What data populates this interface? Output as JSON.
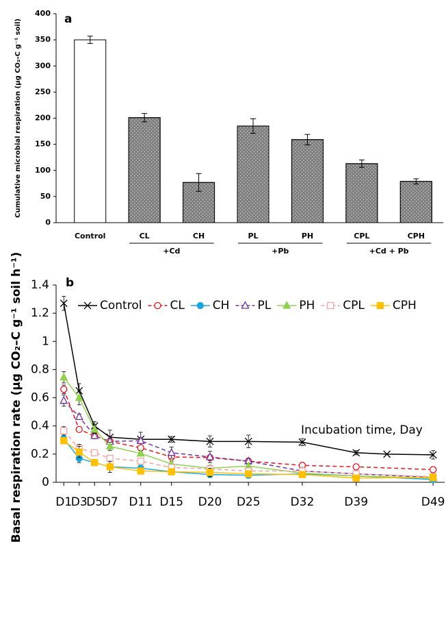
{
  "chart_data": [
    {
      "type": "bar",
      "title": "a",
      "y_label": "Cumulative microbial respiration (μg CO₂-C g⁻¹ soil)",
      "categories": [
        "Control",
        "CL",
        "CH",
        "PL",
        "PH",
        "CPL",
        "CPH"
      ],
      "values": [
        350,
        201,
        77,
        185,
        159,
        113,
        79
      ],
      "errors": [
        7,
        8,
        17,
        14,
        10,
        7,
        5
      ],
      "colors": [
        "#ffffff",
        "#7f7f7f",
        "#7f7f7f",
        "#7f7f7f",
        "#7f7f7f",
        "#7f7f7f",
        "#7f7f7f"
      ],
      "patterns": [
        "none",
        "dots",
        "dots",
        "dots",
        "dots",
        "dots",
        "dots"
      ],
      "groups": [
        "+Cd",
        "+Pb",
        "+Cd + Pb"
      ],
      "ylim": [
        0,
        400
      ],
      "yticks": [
        0,
        50,
        100,
        150,
        200,
        250,
        300,
        350,
        400
      ]
    },
    {
      "type": "line",
      "title": "b",
      "y_label": "Basal respiration rate (μg CO₂–C g⁻¹ soil h⁻¹)",
      "annotation": "Incubation time, Day",
      "xlim": [
        0,
        50.5
      ],
      "xticks": [
        {
          "value": 1,
          "label": "D1"
        },
        {
          "value": 3,
          "label": "D3"
        },
        {
          "value": 5,
          "label": "D5"
        },
        {
          "value": 7,
          "label": "D7"
        },
        {
          "value": 11,
          "label": "D11"
        },
        {
          "value": 15,
          "label": "D15"
        },
        {
          "value": 20,
          "label": "D20"
        },
        {
          "value": 25,
          "label": "D25"
        },
        {
          "value": 32,
          "label": "D32"
        },
        {
          "value": 39,
          "label": "D39"
        },
        {
          "value": 49,
          "label": "D49"
        }
      ],
      "ylim": [
        0,
        1.4
      ],
      "yticks": [
        0,
        0.2,
        0.4,
        0.6,
        0.8,
        1,
        1.2,
        1.4
      ],
      "legend": "top",
      "series": [
        {
          "name": "Control",
          "color": "#000000",
          "marker": "x",
          "dashed": false,
          "x": [
            1,
            3,
            5,
            7,
            11,
            15,
            20,
            25,
            32,
            39,
            43,
            49
          ],
          "values": [
            1.27,
            0.65,
            0.4,
            0.32,
            0.305,
            0.305,
            0.29,
            0.29,
            0.285,
            0.21,
            0.2,
            0.195
          ],
          "errors": [
            0.05,
            0.05,
            0.03,
            0.05,
            0.05,
            0.02,
            0.04,
            0.045,
            0.025,
            0.015,
            null,
            0.03
          ]
        },
        {
          "name": "CL",
          "color": "#e8141b",
          "marker": "circle-open",
          "dashed": true,
          "x": [
            1,
            3,
            5,
            7,
            11,
            15,
            20,
            25,
            32,
            39,
            49
          ],
          "values": [
            0.66,
            0.375,
            0.33,
            0.29,
            0.245,
            0.18,
            0.175,
            0.15,
            0.12,
            0.11,
            0.09
          ],
          "errors": [
            0.03,
            0.01,
            0.02,
            0.02,
            0.03,
            0.02,
            0.02,
            0.01,
            0.02,
            0.02,
            0.02
          ]
        },
        {
          "name": "CH",
          "color": "#1aa7e0",
          "marker": "circle",
          "dashed": false,
          "x": [
            1,
            3,
            5,
            7,
            11,
            15,
            20,
            25,
            32,
            39,
            49
          ],
          "values": [
            0.31,
            0.17,
            0.14,
            0.11,
            0.1,
            0.075,
            0.055,
            0.05,
            0.06,
            0.045,
            0.02
          ],
          "errors": [
            0.02,
            0.03,
            0.02,
            0.02,
            0.02,
            0.01,
            0.02,
            0.02,
            0.01,
            0.01,
            0.01
          ]
        },
        {
          "name": "PL",
          "color": "#7030a0",
          "marker": "triangle-open",
          "dashed": true,
          "x": [
            1,
            3,
            5,
            7,
            11,
            15,
            20,
            25,
            32,
            39,
            49
          ],
          "values": [
            0.58,
            0.465,
            0.33,
            0.29,
            0.295,
            0.21,
            0.18,
            0.15,
            0.08,
            0.06,
            0.035
          ],
          "errors": [
            0.04,
            0.02,
            0.02,
            0.02,
            0.02,
            0.04,
            0.04,
            0.02,
            0.02,
            0.02,
            0.01
          ]
        },
        {
          "name": "PH",
          "color": "#92d050",
          "marker": "triangle",
          "dashed": false,
          "x": [
            1,
            3,
            5,
            7,
            11,
            15,
            20,
            25,
            32,
            39,
            49
          ],
          "values": [
            0.745,
            0.6,
            0.375,
            0.255,
            0.205,
            0.13,
            0.1,
            0.115,
            0.065,
            0.045,
            0.03
          ],
          "errors": [
            0.04,
            0.05,
            0.03,
            0.03,
            0.02,
            0.02,
            0.02,
            0.02,
            0.02,
            0.01,
            0.01
          ]
        },
        {
          "name": "CPL",
          "color": "#f4a3a3",
          "marker": "square-open",
          "dashed": true,
          "x": [
            1,
            3,
            5,
            7,
            11,
            15,
            20,
            25,
            32,
            39,
            49
          ],
          "values": [
            0.365,
            0.24,
            0.21,
            0.17,
            0.15,
            0.105,
            0.095,
            0.08,
            0.08,
            0.06,
            0.04
          ],
          "errors": [
            0.03,
            0.03,
            0.01,
            0.02,
            0.02,
            0.01,
            0.02,
            0.02,
            0.02,
            0.01,
            0.01
          ]
        },
        {
          "name": "CPH",
          "color": "#ffc000",
          "marker": "square",
          "dashed": false,
          "x": [
            1,
            3,
            5,
            7,
            11,
            15,
            20,
            25,
            32,
            39,
            49
          ],
          "values": [
            0.295,
            0.215,
            0.14,
            0.11,
            0.08,
            0.075,
            0.07,
            0.06,
            0.055,
            0.03,
            0.035
          ],
          "errors": [
            0.02,
            0.04,
            0.02,
            0.04,
            0.02,
            0.01,
            0.03,
            0.02,
            0.02,
            0.02,
            0.01
          ]
        }
      ]
    }
  ]
}
